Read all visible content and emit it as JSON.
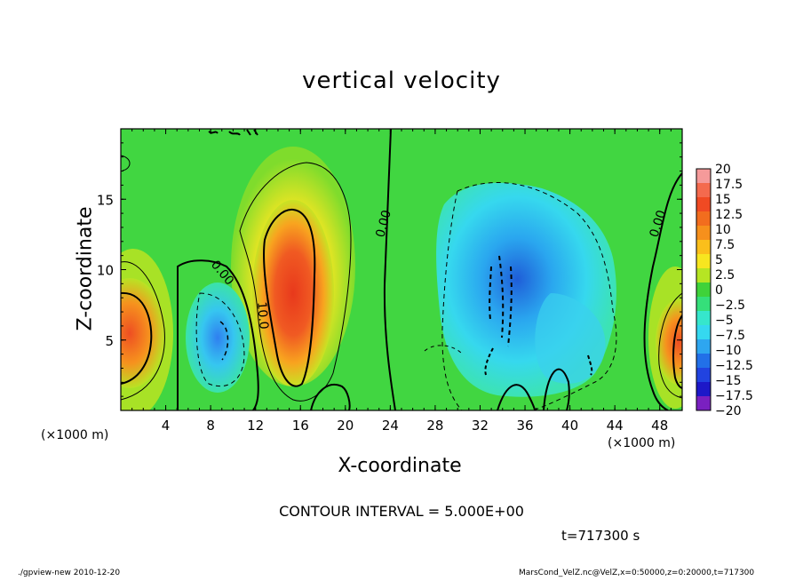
{
  "chart_data": {
    "type": "heatmap",
    "title": "vertical velocity",
    "xlabel": "X-coordinate",
    "ylabel": "Z-coordinate",
    "x_unit_label": "(×1000 m)",
    "xlim": [
      0,
      50
    ],
    "ylim": [
      0,
      20
    ],
    "x_ticks": [
      "4",
      "8",
      "12",
      "16",
      "20",
      "24",
      "28",
      "32",
      "36",
      "40",
      "44",
      "48"
    ],
    "y_ticks": [
      "5",
      "10",
      "15"
    ],
    "colorbar": {
      "labels": [
        "20",
        "17.5",
        "15",
        "12.5",
        "10",
        "7.5",
        "5",
        "2.5",
        "0",
        "−2.5",
        "−5",
        "−7.5",
        "−10",
        "−12.5",
        "−15",
        "−17.5",
        "−20"
      ],
      "colors": [
        "#f59a9a",
        "#f46a4e",
        "#f04a23",
        "#f26d1e",
        "#f6901c",
        "#fbbf1b",
        "#f7e620",
        "#b6e523",
        "#3fd23a",
        "#35df7a",
        "#36e6cc",
        "#35d8f0",
        "#2ea6f0",
        "#2270e8",
        "#2143e0",
        "#1d18c8",
        "#7a20c0"
      ]
    },
    "contour_labels": [
      "0.00",
      "0.00",
      "10.0",
      "0.00",
      "0.00"
    ],
    "contour_interval": "CONTOUR INTERVAL = 5.000E+00",
    "time": "t=717300 s",
    "footer_left": "./gpview-new 2010-12-20",
    "footer_right": "MarsCond_VelZ.nc@VelZ,x=0:50000,z=0:20000,t=717300"
  },
  "colors": {
    "background_field": "#3fd23a",
    "contour_line": "#000000"
  }
}
